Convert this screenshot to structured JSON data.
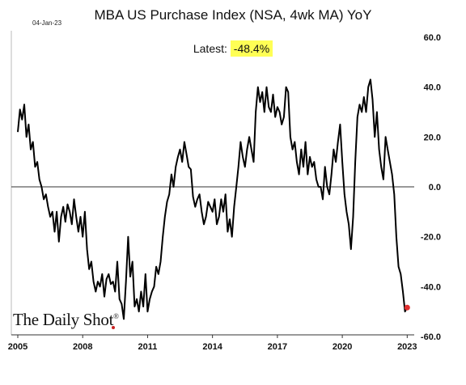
{
  "header": {
    "date": "04-Jan-23",
    "title": "MBA US Purchase Index (NSA, 4wk MA) YoY",
    "latest_label": "Latest:",
    "latest_value": "-48.4%"
  },
  "logo": {
    "text": "The Daily Shot",
    "mark": "®"
  },
  "colors": {
    "line": "#000000",
    "highlight": "#ffff55",
    "end_dot": "#e03030",
    "logo_dot": "#cc2222"
  },
  "chart_data": {
    "type": "line",
    "title": "MBA US Purchase Index (NSA, 4wk MA) YoY",
    "xlabel": "",
    "ylabel": "",
    "xlim": [
      2005.0,
      2023.25
    ],
    "ylim": [
      -60,
      60
    ],
    "y_axis_side": "right",
    "x_ticks": [
      2005,
      2008,
      2011,
      2014,
      2017,
      2020,
      2023
    ],
    "x_tick_labels": [
      "2005",
      "2008",
      "2011",
      "2014",
      "2017",
      "2020",
      "2023"
    ],
    "y_ticks": [
      60,
      40,
      20,
      0,
      -20,
      -40,
      -60
    ],
    "y_tick_labels": [
      "60.0",
      "40.0",
      "20.0",
      "0.0",
      "-20.0",
      "-40.0",
      "-60.0"
    ],
    "reference_line": 0,
    "grid": false,
    "series": [
      {
        "x": [
          2005.0,
          2005.1,
          2005.2,
          2005.3,
          2005.4,
          2005.5,
          2005.6,
          2005.7,
          2005.8,
          2005.9,
          2006.0,
          2006.1,
          2006.2,
          2006.3,
          2006.4,
          2006.5,
          2006.6,
          2006.7,
          2006.8,
          2006.9,
          2007.0,
          2007.1,
          2007.2,
          2007.3,
          2007.4,
          2007.5,
          2007.6,
          2007.7,
          2007.8,
          2007.9,
          2008.0,
          2008.1,
          2008.2,
          2008.3,
          2008.4,
          2008.5,
          2008.6,
          2008.7,
          2008.8,
          2008.9,
          2009.0,
          2009.1,
          2009.2,
          2009.3,
          2009.4,
          2009.5,
          2009.6,
          2009.7,
          2009.8,
          2009.9,
          2010.0,
          2010.1,
          2010.2,
          2010.3,
          2010.4,
          2010.5,
          2010.6,
          2010.7,
          2010.8,
          2010.9,
          2011.0,
          2011.1,
          2011.2,
          2011.3,
          2011.4,
          2011.5,
          2011.6,
          2011.7,
          2011.8,
          2011.9,
          2012.0,
          2012.1,
          2012.2,
          2012.3,
          2012.4,
          2012.5,
          2012.6,
          2012.7,
          2012.8,
          2012.9,
          2013.0,
          2013.1,
          2013.2,
          2013.3,
          2013.4,
          2013.5,
          2013.6,
          2013.7,
          2013.8,
          2013.9,
          2014.0,
          2014.1,
          2014.2,
          2014.3,
          2014.4,
          2014.5,
          2014.6,
          2014.7,
          2014.8,
          2014.9,
          2015.0,
          2015.1,
          2015.2,
          2015.3,
          2015.4,
          2015.5,
          2015.6,
          2015.7,
          2015.8,
          2015.9,
          2016.0,
          2016.1,
          2016.2,
          2016.3,
          2016.4,
          2016.5,
          2016.6,
          2016.7,
          2016.8,
          2016.9,
          2017.0,
          2017.1,
          2017.2,
          2017.3,
          2017.4,
          2017.5,
          2017.6,
          2017.7,
          2017.8,
          2017.9,
          2018.0,
          2018.1,
          2018.2,
          2018.3,
          2018.4,
          2018.5,
          2018.6,
          2018.7,
          2018.8,
          2018.9,
          2019.0,
          2019.1,
          2019.2,
          2019.3,
          2019.4,
          2019.5,
          2019.6,
          2019.7,
          2019.8,
          2019.9,
          2020.0,
          2020.1,
          2020.2,
          2020.3,
          2020.4,
          2020.5,
          2020.6,
          2020.7,
          2020.8,
          2020.9,
          2021.0,
          2021.1,
          2021.2,
          2021.3,
          2021.4,
          2021.5,
          2021.6,
          2021.7,
          2021.8,
          2021.9,
          2022.0,
          2022.1,
          2022.2,
          2022.3,
          2022.4,
          2022.5,
          2022.6,
          2022.7,
          2022.8,
          2022.9,
          2023.0
        ],
        "y": [
          22,
          31,
          27,
          33,
          20,
          25,
          15,
          18,
          8,
          10,
          3,
          0,
          -5,
          -3,
          -8,
          -12,
          -10,
          -18,
          -10,
          -22,
          -12,
          -8,
          -14,
          -7,
          -10,
          -15,
          -5,
          -12,
          -18,
          -12,
          -20,
          -10,
          -25,
          -33,
          -30,
          -38,
          -42,
          -38,
          -40,
          -35,
          -44,
          -37,
          -35,
          -39,
          -38,
          -42,
          -30,
          -45,
          -47,
          -53,
          -38,
          -20,
          -36,
          -30,
          -48,
          -45,
          -50,
          -42,
          -48,
          -35,
          -50,
          -45,
          -42,
          -40,
          -32,
          -35,
          -30,
          -20,
          -12,
          -6,
          -3,
          5,
          0,
          8,
          12,
          15,
          10,
          18,
          13,
          8,
          7,
          -4,
          -8,
          -5,
          -3,
          -10,
          -15,
          -12,
          -6,
          -8,
          -10,
          -5,
          -15,
          -12,
          -5,
          -10,
          -3,
          -18,
          -13,
          -20,
          -8,
          0,
          8,
          18,
          12,
          8,
          15,
          20,
          15,
          10,
          30,
          40,
          34,
          38,
          30,
          40,
          32,
          30,
          37,
          28,
          32,
          30,
          25,
          28,
          40,
          38,
          20,
          15,
          18,
          10,
          5,
          15,
          8,
          18,
          5,
          12,
          8,
          10,
          3,
          0,
          0,
          -5,
          8,
          0,
          -3,
          5,
          15,
          10,
          18,
          25,
          10,
          -3,
          -10,
          -15,
          -25,
          -12,
          10,
          28,
          33,
          30,
          36,
          30,
          40,
          43,
          35,
          20,
          30,
          15,
          8,
          3,
          20,
          15,
          10,
          5,
          -3,
          -20,
          -32,
          -35,
          -42,
          -50,
          -48.4
        ]
      }
    ],
    "latest": {
      "x": 2023.0,
      "y": -48.4
    }
  }
}
